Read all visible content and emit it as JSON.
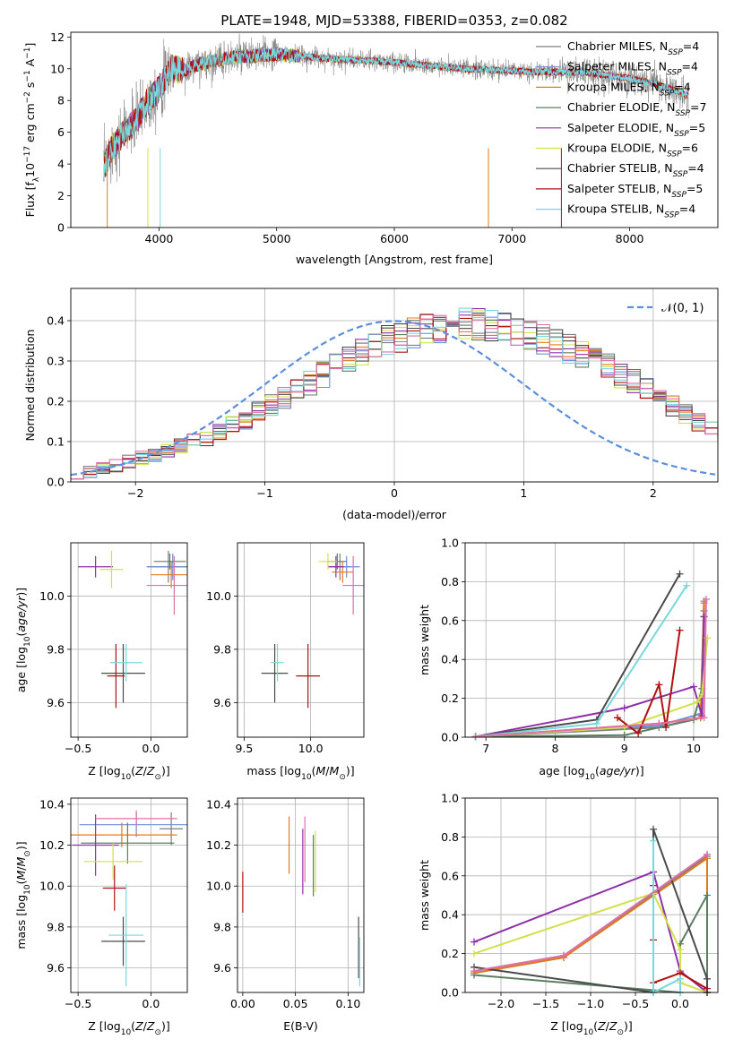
{
  "figure_title": "PLATE=1948, MJD=53388, FIBERID=0353, z=0.082",
  "colors": {
    "Chabrier MILES": "#7f7f7f",
    "Salpeter MILES": "#6f8fd6",
    "Kroupa MILES": "#e07b1b",
    "Chabrier ELODIE": "#5a7f60",
    "Salpeter ELODIE": "#9030a8",
    "Kroupa ELODIE": "#d2e04a",
    "Chabrier STELIB": "#4a4a4a",
    "Salpeter STELIB": "#b01010",
    "Kroupa STELIB": "#78d8dc",
    "gaussian": "#5b8fde",
    "pink": "#e070a8"
  },
  "chart_data": [
    {
      "id": "spectrum",
      "type": "line",
      "title": "PLATE=1948, MJD=53388, FIBERID=0353, z=0.082",
      "xlabel": "wavelength [Angstrom, rest frame]",
      "ylabel_parts": [
        "Flux [f",
        "λ",
        "10",
        "−17",
        " erg cm",
        "−2",
        " s",
        "−1",
        " A",
        "−1",
        "]"
      ],
      "xlim": [
        3250,
        8750
      ],
      "ylim": [
        0,
        12.3
      ],
      "xticks": [
        4000,
        5000,
        6000,
        7000,
        8000
      ],
      "yticks": [
        0,
        2,
        4,
        6,
        8,
        10,
        12
      ],
      "legend_position": "top-right",
      "legend": [
        {
          "name": "Chabrier MILES",
          "nssp": "4"
        },
        {
          "name": "Salpeter MILES",
          "nssp": "4"
        },
        {
          "name": "Kroupa MILES",
          "nssp": "4"
        },
        {
          "name": "Chabrier ELODIE",
          "nssp": "7"
        },
        {
          "name": "Salpeter ELODIE",
          "nssp": "5"
        },
        {
          "name": "Kroupa ELODIE",
          "nssp": "6"
        },
        {
          "name": "Chabrier STELIB",
          "nssp": "4"
        },
        {
          "name": "Salpeter STELIB",
          "nssp": "5"
        },
        {
          "name": "Kroupa STELIB",
          "nssp": "4"
        }
      ],
      "legend_sub": "SSP",
      "continuum": {
        "x": [
          3530,
          3600,
          3700,
          3800,
          3900,
          4000,
          4100,
          4200,
          4400,
          4600,
          4800,
          5000,
          5200,
          5500,
          5800,
          6000,
          6300,
          6600,
          6900,
          7200,
          7400,
          7600,
          7800,
          8000,
          8200,
          8400,
          8500
        ],
        "y": [
          3.8,
          5.0,
          6.0,
          6.7,
          7.9,
          8.7,
          10.0,
          9.9,
          10.4,
          10.7,
          10.8,
          10.9,
          10.8,
          10.6,
          10.5,
          10.4,
          10.2,
          10.0,
          9.9,
          9.8,
          9.8,
          9.8,
          9.6,
          9.4,
          9.1,
          8.6,
          8.3
        ]
      }
    },
    {
      "id": "residuals",
      "type": "bar",
      "xlabel": "(data-model)/error",
      "ylabel": "Normed distribution",
      "xlim": [
        -2.5,
        2.5
      ],
      "ylim": [
        0,
        0.48
      ],
      "xticks": [
        -2,
        -1,
        0,
        1,
        2
      ],
      "yticks": [
        0.0,
        0.1,
        0.2,
        0.3,
        0.4
      ],
      "bin_start": -2.5,
      "bin_width": 0.1,
      "envelope": [
        0.02,
        0.025,
        0.035,
        0.04,
        0.05,
        0.06,
        0.065,
        0.075,
        0.09,
        0.1,
        0.11,
        0.125,
        0.14,
        0.155,
        0.175,
        0.19,
        0.21,
        0.23,
        0.245,
        0.265,
        0.285,
        0.3,
        0.32,
        0.335,
        0.35,
        0.36,
        0.37,
        0.38,
        0.385,
        0.39,
        0.39,
        0.39,
        0.385,
        0.38,
        0.375,
        0.365,
        0.355,
        0.345,
        0.33,
        0.315,
        0.3,
        0.285,
        0.265,
        0.25,
        0.23,
        0.21,
        0.19,
        0.17,
        0.15,
        0.13,
        0.115,
        0.1,
        0.085,
        0.075,
        0.065,
        0.055,
        0.045,
        0.04,
        0.035,
        0.03,
        0.025
      ],
      "legend_position": "top-right",
      "gaussian_label": "𝒩(0, 1)"
    },
    {
      "id": "age-vs-Z",
      "type": "scatter",
      "xlabel_text": "Z [log",
      "xlabel_sub": "10",
      "xlabel_tail": "(Z/Z",
      "ylabel_text": "age  [log",
      "ylabel_sub": "10",
      "ylabel_tail": "(age/yr)]",
      "xlim": [
        -0.55,
        0.25
      ],
      "ylim": [
        9.47,
        10.2
      ],
      "xticks": [
        -0.5,
        0.0
      ],
      "yticks": [
        9.6,
        9.8,
        10.0
      ],
      "points": [
        {
          "s": "Chabrier MILES",
          "x": 0.12,
          "y": 10.11,
          "xe": 0.14,
          "ye": 0.06
        },
        {
          "s": "Salpeter MILES",
          "x": 0.15,
          "y": 10.11,
          "xe": 0.18,
          "ye": 0.05
        },
        {
          "s": "Kroupa MILES",
          "x": 0.14,
          "y": 10.08,
          "xe": 0.14,
          "ye": 0.05
        },
        {
          "s": "Chabrier ELODIE",
          "x": 0.13,
          "y": 10.13,
          "xe": 0.11,
          "ye": 0.03
        },
        {
          "s": "Salpeter ELODIE",
          "x": -0.38,
          "y": 10.11,
          "xe": 0.12,
          "ye": 0.04
        },
        {
          "s": "Kroupa ELODIE",
          "x": -0.27,
          "y": 10.1,
          "xe": 0.08,
          "ye": 0.07
        },
        {
          "s": "Chabrier STELIB",
          "x": -0.19,
          "y": 9.71,
          "xe": 0.15,
          "ye": 0.11
        },
        {
          "s": "Salpeter STELIB",
          "x": -0.24,
          "y": 9.7,
          "xe": 0.06,
          "ye": 0.12
        },
        {
          "s": "Kroupa STELIB",
          "x": -0.17,
          "y": 9.75,
          "xe": 0.11,
          "ye": 0.07
        },
        {
          "s": "pink",
          "x": 0.16,
          "y": 10.04,
          "xe": 0.19,
          "ye": 0.11
        }
      ]
    },
    {
      "id": "age-vs-mass",
      "type": "scatter",
      "xlabel_text": "mass [log",
      "xlabel_sub": "10",
      "xlabel_tail": "(M/M",
      "xlim": [
        9.45,
        10.4
      ],
      "ylim": [
        9.47,
        10.2
      ],
      "xticks": [
        9.5,
        10.0
      ],
      "yticks": [
        9.6,
        9.8,
        10.0
      ],
      "points": [
        {
          "s": "Chabrier MILES",
          "x": 10.22,
          "y": 10.11,
          "xe": 0.08,
          "ye": 0.05
        },
        {
          "s": "Salpeter MILES",
          "x": 10.27,
          "y": 10.11,
          "xe": 0.1,
          "ye": 0.04
        },
        {
          "s": "Kroupa MILES",
          "x": 10.24,
          "y": 10.09,
          "xe": 0.08,
          "ye": 0.04
        },
        {
          "s": "Chabrier ELODIE",
          "x": 10.2,
          "y": 10.13,
          "xe": 0.07,
          "ye": 0.03
        },
        {
          "s": "Salpeter ELODIE",
          "x": 10.19,
          "y": 10.11,
          "xe": 0.06,
          "ye": 0.04
        },
        {
          "s": "Kroupa ELODIE",
          "x": 10.13,
          "y": 10.13,
          "xe": 0.07,
          "ye": 0.03
        },
        {
          "s": "Chabrier STELIB",
          "x": 9.73,
          "y": 9.71,
          "xe": 0.1,
          "ye": 0.11
        },
        {
          "s": "Salpeter STELIB",
          "x": 9.98,
          "y": 9.7,
          "xe": 0.09,
          "ye": 0.12
        },
        {
          "s": "Kroupa STELIB",
          "x": 9.75,
          "y": 9.75,
          "xe": 0.05,
          "ye": 0.07
        },
        {
          "s": "pink",
          "x": 10.32,
          "y": 10.04,
          "xe": 0.08,
          "ye": 0.11
        }
      ]
    },
    {
      "id": "mass-weight-vs-age",
      "type": "line",
      "xlabel_text": "age  [log",
      "xlabel_sub": "10",
      "xlabel_tail": "(age/yr)]",
      "ylabel": "mass weight",
      "xlim": [
        6.7,
        10.35
      ],
      "ylim": [
        0,
        1.0
      ],
      "xticks": [
        7,
        8,
        9,
        10
      ],
      "yticks": [
        0.0,
        0.2,
        0.4,
        0.6,
        0.8,
        1.0
      ],
      "series": [
        {
          "s": "Chabrier MILES",
          "x": [
            6.85,
            9.5,
            10.1,
            10.15
          ],
          "y": [
            0.003,
            0.05,
            0.1,
            0.65
          ]
        },
        {
          "s": "Salpeter MILES",
          "x": [
            6.85,
            9.5,
            10.1,
            10.15
          ],
          "y": [
            0.003,
            0.06,
            0.12,
            0.7
          ]
        },
        {
          "s": "Kroupa MILES",
          "x": [
            6.85,
            9.5,
            10.1,
            10.15
          ],
          "y": [
            0.003,
            0.07,
            0.1,
            0.69
          ]
        },
        {
          "s": "Chabrier ELODIE",
          "x": [
            6.85,
            9.0,
            10.0,
            10.12,
            10.15
          ],
          "y": [
            0.003,
            0.01,
            0.09,
            0.25,
            0.62
          ]
        },
        {
          "s": "Salpeter ELODIE",
          "x": [
            6.85,
            9.0,
            10.0,
            10.12,
            10.15
          ],
          "y": [
            0.003,
            0.15,
            0.26,
            0.11,
            0.62
          ]
        },
        {
          "s": "Kroupa ELODIE",
          "x": [
            6.85,
            9.0,
            10.05,
            10.12,
            10.2
          ],
          "y": [
            0.003,
            0.05,
            0.18,
            0.22,
            0.51
          ]
        },
        {
          "s": "Chabrier STELIB",
          "x": [
            6.85,
            8.6,
            9.8
          ],
          "y": [
            0.003,
            0.09,
            0.84
          ]
        },
        {
          "s": "Salpeter STELIB",
          "x": [
            8.9,
            9.2,
            9.5,
            9.6,
            9.8
          ],
          "y": [
            0.1,
            0.02,
            0.27,
            0.05,
            0.55
          ]
        },
        {
          "s": "Kroupa STELIB",
          "x": [
            6.85,
            8.6,
            9.9
          ],
          "y": [
            0.003,
            0.07,
            0.78
          ]
        },
        {
          "s": "pink",
          "x": [
            6.85,
            9.5,
            10.15,
            10.18
          ],
          "y": [
            0.003,
            0.07,
            0.1,
            0.71
          ]
        }
      ]
    },
    {
      "id": "mass-vs-Z",
      "type": "scatter",
      "xlabel_text": "Z [log",
      "xlabel_sub": "10",
      "xlabel_tail": "(Z/Z",
      "ylabel_text": "mass [log",
      "ylabel_sub": "10",
      "ylabel_tail": "(M/M",
      "xlim": [
        -0.55,
        0.25
      ],
      "ylim": [
        9.48,
        10.43
      ],
      "xticks": [
        -0.5,
        0.0
      ],
      "yticks": [
        9.6,
        9.8,
        10.0,
        10.2,
        10.4
      ],
      "points": [
        {
          "s": "Chabrier MILES",
          "x": 0.14,
          "y": 10.28,
          "xe": 0.08,
          "ye": 0.08
        },
        {
          "s": "Salpeter MILES",
          "x": -0.1,
          "y": 10.3,
          "xe": 0.39,
          "ye": 0.06
        },
        {
          "s": "Kroupa MILES",
          "x": -0.2,
          "y": 10.25,
          "xe": 0.38,
          "ye": 0.06
        },
        {
          "s": "Chabrier ELODIE",
          "x": -0.16,
          "y": 10.21,
          "xe": 0.32,
          "ye": 0.1
        },
        {
          "s": "Salpeter ELODIE",
          "x": -0.38,
          "y": 10.2,
          "xe": 0.16,
          "ye": 0.15
        },
        {
          "s": "Kroupa ELODIE",
          "x": -0.26,
          "y": 10.12,
          "xe": 0.2,
          "ye": 0.09
        },
        {
          "s": "Chabrier STELIB",
          "x": -0.19,
          "y": 9.73,
          "xe": 0.15,
          "ye": 0.12
        },
        {
          "s": "Salpeter STELIB",
          "x": -0.25,
          "y": 9.99,
          "xe": 0.08,
          "ye": 0.11
        },
        {
          "s": "Kroupa STELIB",
          "x": -0.17,
          "y": 9.76,
          "xe": 0.12,
          "ye": 0.25
        },
        {
          "s": "pink",
          "x": -0.1,
          "y": 10.33,
          "xe": 0.28,
          "ye": 0.04
        }
      ]
    },
    {
      "id": "mass-vs-EBV",
      "type": "scatter",
      "xlabel": "E(B-V)",
      "xlim": [
        -0.005,
        0.115
      ],
      "ylim": [
        9.48,
        10.43
      ],
      "xticks": [
        0.0,
        0.05,
        0.1
      ],
      "yticks": [
        9.6,
        9.8,
        10.0,
        10.2,
        10.4
      ],
      "points": [
        {
          "s": "Salpeter STELIB",
          "x": 0.0,
          "y": 9.97,
          "xe": 0,
          "ye": 0.1
        },
        {
          "s": "Kroupa MILES",
          "x": 0.044,
          "y": 10.2,
          "xe": 0,
          "ye": 0.14
        },
        {
          "s": "Salpeter ELODIE",
          "x": 0.057,
          "y": 10.12,
          "xe": 0,
          "ye": 0.16
        },
        {
          "s": "pink",
          "x": 0.059,
          "y": 10.18,
          "xe": 0,
          "ye": 0.16
        },
        {
          "s": "Kroupa ELODIE",
          "x": 0.069,
          "y": 10.12,
          "xe": 0,
          "ye": 0.15
        },
        {
          "s": "Chabrier ELODIE",
          "x": 0.067,
          "y": 10.1,
          "xe": 0,
          "ye": 0.15
        },
        {
          "s": "Chabrier STELIB",
          "x": 0.11,
          "y": 9.7,
          "xe": 0,
          "ye": 0.15
        },
        {
          "s": "Kroupa STELIB",
          "x": 0.111,
          "y": 9.63,
          "xe": 0,
          "ye": 0.12
        }
      ]
    },
    {
      "id": "mass-weight-vs-Z",
      "type": "line",
      "xlabel_text": "Z [log",
      "xlabel_sub": "10",
      "xlabel_tail": "(Z/Z",
      "ylabel": "mass weight",
      "xlim": [
        -2.4,
        0.42
      ],
      "ylim": [
        0,
        1.0
      ],
      "xticks": [
        -2.0,
        -1.5,
        -1.0,
        -0.5,
        0.0
      ],
      "yticks": [
        0.0,
        0.2,
        0.4,
        0.6,
        0.8,
        1.0
      ],
      "series": [
        {
          "s": "Chabrier MILES",
          "x": [
            -2.3,
            -1.3,
            0.3,
            0.3
          ],
          "y": [
            0.1,
            0.18,
            0.7,
            0.0
          ]
        },
        {
          "s": "Salpeter MILES",
          "x": [
            -2.3,
            -1.3,
            0.3,
            0.3
          ],
          "y": [
            0.11,
            0.19,
            0.71,
            0.0
          ]
        },
        {
          "s": "Kroupa MILES",
          "x": [
            -2.3,
            -1.3,
            0.3,
            0.3
          ],
          "y": [
            0.1,
            0.18,
            0.69,
            0.0
          ]
        },
        {
          "s": "Chabrier ELODIE",
          "x": [
            -2.3,
            0.0,
            0.0,
            0.3,
            0.3
          ],
          "y": [
            0.09,
            0.0,
            0.25,
            0.5,
            0.0
          ]
        },
        {
          "s": "Salpeter ELODIE",
          "x": [
            -2.3,
            -0.3,
            0.0,
            0.3
          ],
          "y": [
            0.26,
            0.62,
            0.11,
            0.0
          ]
        },
        {
          "s": "Kroupa ELODIE",
          "x": [
            -2.3,
            -0.3,
            0.0,
            0.0,
            0.3
          ],
          "y": [
            0.2,
            0.51,
            0.22,
            0.05,
            0.0
          ]
        },
        {
          "s": "Chabrier STELIB",
          "x": [
            -2.3,
            -0.3,
            -0.3,
            0.3,
            0.3
          ],
          "y": [
            0.13,
            0.0,
            0.84,
            0.07,
            0.0
          ]
        },
        {
          "s": "Salpeter STELIB",
          "x": [
            -0.3,
            -0.3,
            -0.3,
            0.0,
            0.3
          ],
          "y": [
            0.55,
            0.27,
            0.05,
            0.1,
            0.02
          ]
        },
        {
          "s": "Kroupa STELIB",
          "x": [
            -0.3,
            -0.3,
            0.0,
            0.0
          ],
          "y": [
            0.78,
            0.0,
            0.07,
            0.0
          ]
        },
        {
          "s": "pink",
          "x": [
            -2.3,
            -1.3,
            0.3
          ],
          "y": [
            0.11,
            0.19,
            0.71
          ]
        }
      ]
    }
  ]
}
